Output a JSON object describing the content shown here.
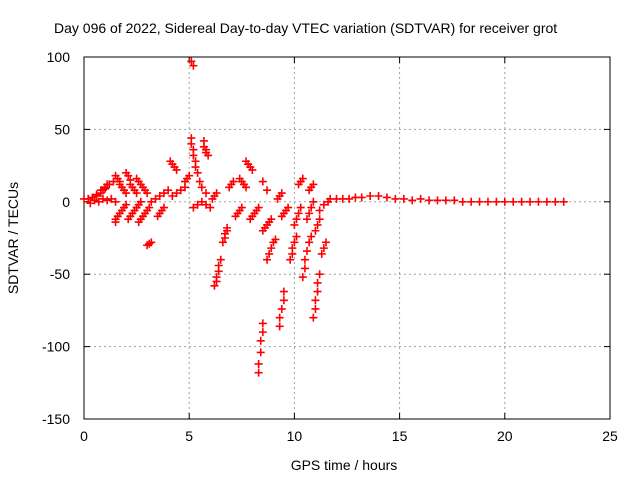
{
  "chart_data": {
    "type": "scatter",
    "title": "Day 096 of 2022, Sidereal Day-to-day VTEC variation (SDTVAR) for receiver grot",
    "xlabel": "GPS time / hours",
    "ylabel": "SDTVAR / TECUs",
    "xlim": [
      0,
      25
    ],
    "ylim": [
      -150,
      100
    ],
    "xticks": [
      "0",
      "5",
      "10",
      "15",
      "20",
      "25"
    ],
    "yticks": [
      "100",
      "50",
      "0",
      "-50",
      "-100",
      "-150"
    ],
    "grid": true,
    "marker": "+",
    "color": "#ff0000",
    "series": [
      {
        "name": "SDTVAR",
        "points": [
          [
            0.0,
            2
          ],
          [
            0.2,
            2
          ],
          [
            0.4,
            3
          ],
          [
            0.6,
            4
          ],
          [
            0.8,
            6
          ],
          [
            0.9,
            8
          ],
          [
            1.0,
            10
          ],
          [
            1.1,
            12
          ],
          [
            0.3,
            -1
          ],
          [
            0.5,
            1
          ],
          [
            0.7,
            0
          ],
          [
            0.9,
            2
          ],
          [
            1.1,
            1
          ],
          [
            1.3,
            2
          ],
          [
            1.5,
            0
          ],
          [
            0.6,
            5
          ],
          [
            0.8,
            8
          ],
          [
            1.0,
            9
          ],
          [
            1.2,
            12
          ],
          [
            1.4,
            14
          ],
          [
            1.5,
            -14
          ],
          [
            1.5,
            -12
          ],
          [
            1.6,
            -10
          ],
          [
            1.7,
            -8
          ],
          [
            1.8,
            -6
          ],
          [
            1.9,
            -4
          ],
          [
            2.0,
            -2
          ],
          [
            1.5,
            18
          ],
          [
            1.6,
            16
          ],
          [
            1.7,
            14
          ],
          [
            1.7,
            12
          ],
          [
            1.8,
            10
          ],
          [
            1.9,
            8
          ],
          [
            2.0,
            6
          ],
          [
            2.0,
            20
          ],
          [
            2.1,
            18
          ],
          [
            2.2,
            15
          ],
          [
            2.2,
            12
          ],
          [
            2.3,
            10
          ],
          [
            2.4,
            8
          ],
          [
            2.5,
            6
          ],
          [
            2.1,
            -12
          ],
          [
            2.2,
            -10
          ],
          [
            2.3,
            -8
          ],
          [
            2.4,
            -6
          ],
          [
            2.5,
            -4
          ],
          [
            2.6,
            -2
          ],
          [
            2.7,
            0
          ],
          [
            2.6,
            -14
          ],
          [
            2.7,
            -12
          ],
          [
            2.8,
            -10
          ],
          [
            2.9,
            -8
          ],
          [
            3.0,
            -6
          ],
          [
            3.1,
            -4
          ],
          [
            2.5,
            16
          ],
          [
            2.6,
            14
          ],
          [
            2.7,
            12
          ],
          [
            2.8,
            10
          ],
          [
            2.9,
            8
          ],
          [
            3.0,
            6
          ],
          [
            3.0,
            -30
          ],
          [
            3.1,
            -29
          ],
          [
            3.2,
            -28
          ],
          [
            3.2,
            0
          ],
          [
            3.4,
            2
          ],
          [
            3.6,
            4
          ],
          [
            3.8,
            6
          ],
          [
            4.0,
            8
          ],
          [
            3.5,
            -10
          ],
          [
            3.6,
            -8
          ],
          [
            3.7,
            -6
          ],
          [
            3.8,
            -4
          ],
          [
            4.1,
            28
          ],
          [
            4.2,
            26
          ],
          [
            4.3,
            24
          ],
          [
            4.4,
            22
          ],
          [
            4.2,
            4
          ],
          [
            4.4,
            6
          ],
          [
            4.6,
            8
          ],
          [
            4.8,
            10
          ],
          [
            4.8,
            14
          ],
          [
            4.9,
            16
          ],
          [
            5.0,
            18
          ],
          [
            5.1,
            97
          ],
          [
            5.2,
            94
          ],
          [
            5.1,
            44
          ],
          [
            5.1,
            40
          ],
          [
            5.2,
            36
          ],
          [
            5.2,
            32
          ],
          [
            5.3,
            28
          ],
          [
            5.3,
            24
          ],
          [
            5.4,
            20
          ],
          [
            5.7,
            42
          ],
          [
            5.7,
            38
          ],
          [
            5.8,
            36
          ],
          [
            5.8,
            34
          ],
          [
            5.9,
            32
          ],
          [
            5.2,
            -4
          ],
          [
            5.4,
            -2
          ],
          [
            5.6,
            0
          ],
          [
            5.8,
            -2
          ],
          [
            6.0,
            -4
          ],
          [
            5.5,
            14
          ],
          [
            5.6,
            10
          ],
          [
            5.8,
            6
          ],
          [
            6.1,
            2
          ],
          [
            6.2,
            4
          ],
          [
            6.3,
            6
          ],
          [
            6.2,
            -58
          ],
          [
            6.3,
            -55
          ],
          [
            6.3,
            -52
          ],
          [
            6.4,
            -48
          ],
          [
            6.4,
            -44
          ],
          [
            6.5,
            -40
          ],
          [
            6.6,
            -28
          ],
          [
            6.7,
            -25
          ],
          [
            6.7,
            -22
          ],
          [
            6.8,
            -20
          ],
          [
            6.8,
            -18
          ],
          [
            6.9,
            10
          ],
          [
            7.0,
            12
          ],
          [
            7.1,
            14
          ],
          [
            7.2,
            -10
          ],
          [
            7.3,
            -8
          ],
          [
            7.4,
            -6
          ],
          [
            7.5,
            -4
          ],
          [
            7.4,
            16
          ],
          [
            7.5,
            14
          ],
          [
            7.6,
            12
          ],
          [
            7.7,
            10
          ],
          [
            7.7,
            28
          ],
          [
            7.8,
            26
          ],
          [
            7.9,
            24
          ],
          [
            8.0,
            22
          ],
          [
            7.9,
            -12
          ],
          [
            8.0,
            -10
          ],
          [
            8.1,
            -8
          ],
          [
            8.2,
            -6
          ],
          [
            8.3,
            -4
          ],
          [
            8.3,
            -118
          ],
          [
            8.3,
            -112
          ],
          [
            8.4,
            -104
          ],
          [
            8.4,
            -96
          ],
          [
            8.5,
            -90
          ],
          [
            8.5,
            -84
          ],
          [
            8.5,
            -20
          ],
          [
            8.6,
            -18
          ],
          [
            8.7,
            -16
          ],
          [
            8.8,
            -14
          ],
          [
            8.9,
            -12
          ],
          [
            8.5,
            14
          ],
          [
            8.7,
            8
          ],
          [
            8.7,
            -40
          ],
          [
            8.8,
            -36
          ],
          [
            8.9,
            -32
          ],
          [
            9.0,
            -28
          ],
          [
            9.1,
            -26
          ],
          [
            9.2,
            2
          ],
          [
            9.3,
            4
          ],
          [
            9.4,
            6
          ],
          [
            9.3,
            -86
          ],
          [
            9.3,
            -80
          ],
          [
            9.4,
            -74
          ],
          [
            9.5,
            -68
          ],
          [
            9.5,
            -62
          ],
          [
            9.4,
            -10
          ],
          [
            9.5,
            -8
          ],
          [
            9.6,
            -6
          ],
          [
            9.7,
            -4
          ],
          [
            9.8,
            -40
          ],
          [
            9.9,
            -36
          ],
          [
            9.9,
            -32
          ],
          [
            10.0,
            -28
          ],
          [
            10.1,
            -24
          ],
          [
            10.0,
            -16
          ],
          [
            10.1,
            -12
          ],
          [
            10.2,
            -8
          ],
          [
            10.3,
            -4
          ],
          [
            10.2,
            12
          ],
          [
            10.3,
            14
          ],
          [
            10.4,
            16
          ],
          [
            10.4,
            -52
          ],
          [
            10.5,
            -46
          ],
          [
            10.5,
            -40
          ],
          [
            10.6,
            -34
          ],
          [
            10.7,
            -28
          ],
          [
            10.8,
            -24
          ],
          [
            10.6,
            -12
          ],
          [
            10.7,
            -8
          ],
          [
            10.8,
            -4
          ],
          [
            10.9,
            0
          ],
          [
            10.7,
            8
          ],
          [
            10.8,
            10
          ],
          [
            10.9,
            12
          ],
          [
            10.9,
            -80
          ],
          [
            11.0,
            -74
          ],
          [
            11.0,
            -68
          ],
          [
            11.1,
            -62
          ],
          [
            11.1,
            -56
          ],
          [
            11.2,
            -50
          ],
          [
            11.0,
            -20
          ],
          [
            11.1,
            -16
          ],
          [
            11.2,
            -12
          ],
          [
            11.3,
            -36
          ],
          [
            11.4,
            -32
          ],
          [
            11.5,
            -28
          ],
          [
            11.2,
            -6
          ],
          [
            11.4,
            -2
          ],
          [
            11.6,
            0
          ],
          [
            11.7,
            2
          ],
          [
            12.0,
            2
          ],
          [
            12.3,
            2
          ],
          [
            12.6,
            2
          ],
          [
            12.9,
            3
          ],
          [
            13.2,
            3
          ],
          [
            13.6,
            4
          ],
          [
            14.0,
            4
          ],
          [
            14.4,
            3
          ],
          [
            14.8,
            2
          ],
          [
            15.2,
            2
          ],
          [
            15.6,
            1
          ],
          [
            16.0,
            2
          ],
          [
            16.4,
            1
          ],
          [
            16.8,
            1
          ],
          [
            17.2,
            1
          ],
          [
            17.6,
            1
          ],
          [
            18.0,
            0
          ],
          [
            18.4,
            0
          ],
          [
            18.8,
            0
          ],
          [
            19.2,
            0
          ],
          [
            19.6,
            0
          ],
          [
            20.0,
            0
          ],
          [
            20.4,
            0
          ],
          [
            20.8,
            0
          ],
          [
            21.2,
            0
          ],
          [
            21.6,
            0
          ],
          [
            22.0,
            0
          ],
          [
            22.4,
            0
          ],
          [
            22.8,
            0
          ]
        ]
      }
    ]
  }
}
